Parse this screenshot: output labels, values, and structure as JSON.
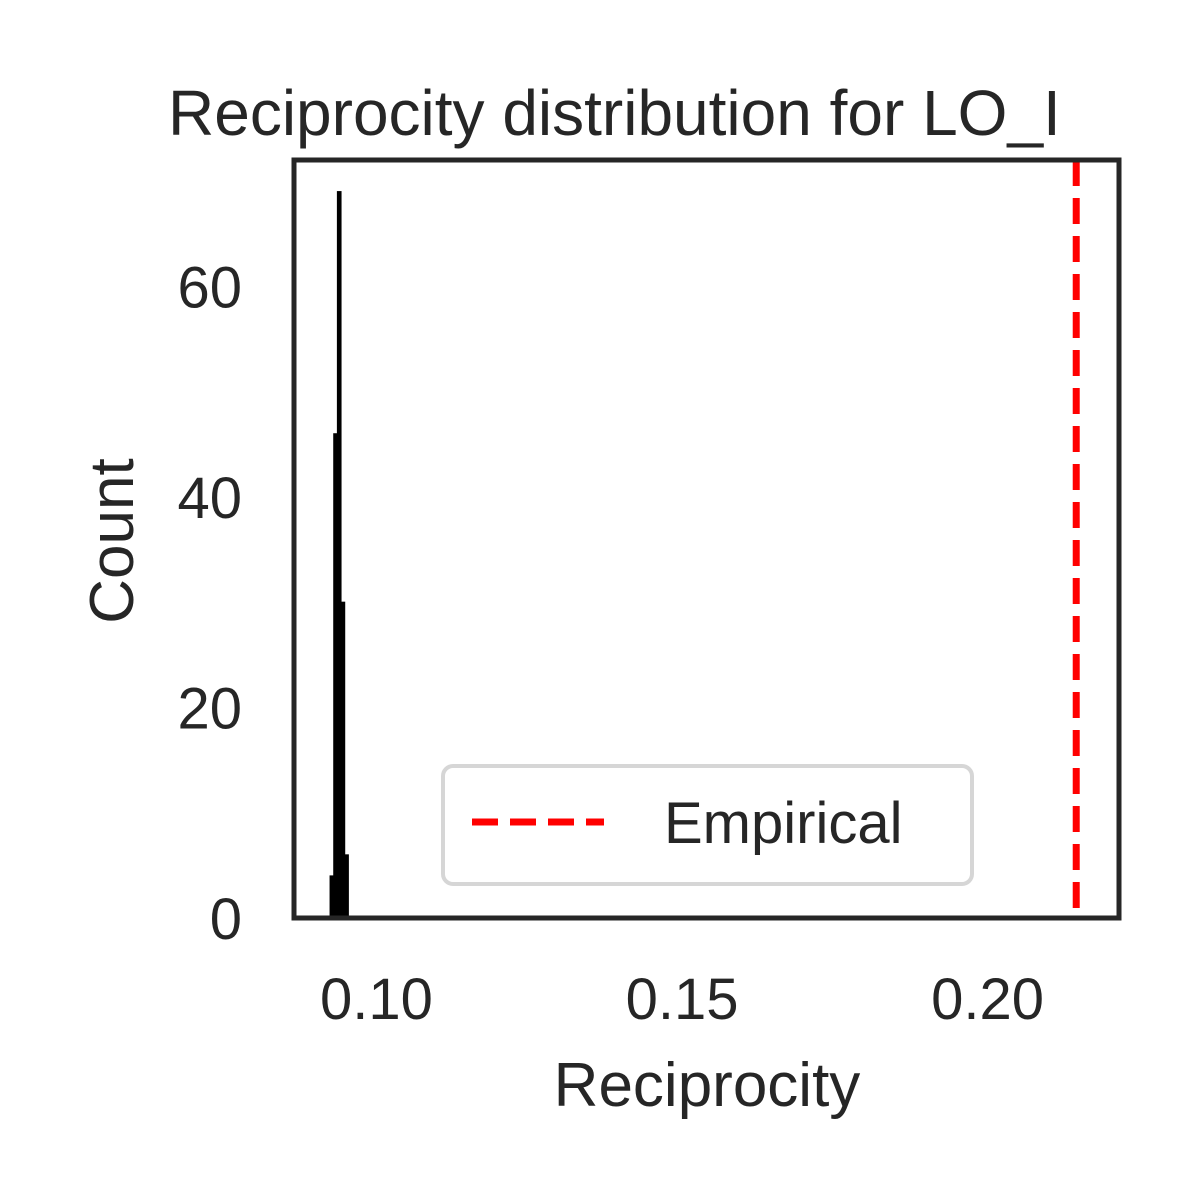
{
  "chart_data": {
    "type": "histogram",
    "title": "Reciprocity distribution for LO_I",
    "xlabel": "Reciprocity",
    "ylabel": "Count",
    "xlim": [
      0.0865,
      0.2215
    ],
    "ylim": [
      0,
      72
    ],
    "xticks": [
      {
        "value": 0.1,
        "label": "0.10"
      },
      {
        "value": 0.15,
        "label": "0.15"
      },
      {
        "value": 0.2,
        "label": "0.20"
      }
    ],
    "yticks": [
      {
        "value": 0,
        "label": "0"
      },
      {
        "value": 20,
        "label": "20"
      },
      {
        "value": 40,
        "label": "40"
      },
      {
        "value": 60,
        "label": "60"
      }
    ],
    "histogram": {
      "color": "#000000",
      "bins": [
        {
          "x0": 0.0924,
          "x1": 0.093,
          "count": 4
        },
        {
          "x0": 0.093,
          "x1": 0.0936,
          "count": 46
        },
        {
          "x0": 0.0936,
          "x1": 0.0942,
          "count": 69
        },
        {
          "x0": 0.0942,
          "x1": 0.0948,
          "count": 30
        },
        {
          "x0": 0.0948,
          "x1": 0.0954,
          "count": 6
        }
      ]
    },
    "empirical_line": {
      "x": 0.2145,
      "label": "Empirical",
      "color": "#ff0000",
      "style": "dashed"
    },
    "legend": {
      "placement": "lower-right"
    },
    "grid": false
  }
}
